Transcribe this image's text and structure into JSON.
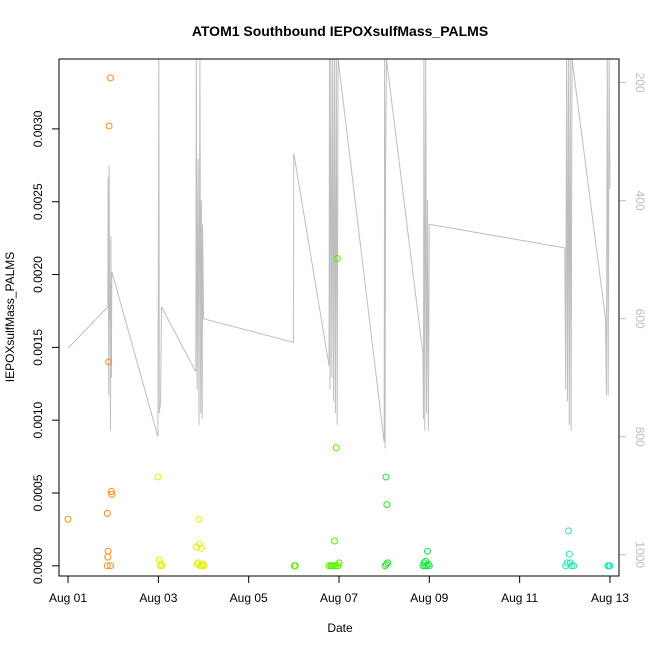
{
  "chart_data": {
    "type": "scatter",
    "title": "ATOM1 Southbound IEPOXsulfMass_PALMS",
    "xlabel": "Date",
    "ylabel": "IEPOXsulfMass_PALMS",
    "x_unit": "days in August",
    "xlim": [
      0.8,
      13.2
    ],
    "ylim": [
      -7e-05,
      0.00348
    ],
    "x_ticks": [
      {
        "value": 1,
        "label": "Aug 01"
      },
      {
        "value": 3,
        "label": "Aug 03"
      },
      {
        "value": 5,
        "label": "Aug 05"
      },
      {
        "value": 7,
        "label": "Aug 07"
      },
      {
        "value": 9,
        "label": "Aug 09"
      },
      {
        "value": 11,
        "label": "Aug 11"
      },
      {
        "value": 13,
        "label": "Aug 13"
      }
    ],
    "y_ticks": [
      {
        "value": 0,
        "label": "0.0000"
      },
      {
        "value": 0.0005,
        "label": "0.0005"
      },
      {
        "value": 0.001,
        "label": "0.0010"
      },
      {
        "value": 0.0015,
        "label": "0.0015"
      },
      {
        "value": 0.002,
        "label": "0.0020"
      },
      {
        "value": 0.0025,
        "label": "0.0025"
      },
      {
        "value": 0.003,
        "label": "0.0030"
      }
    ],
    "y2_reversed": true,
    "y2lim": [
      1036,
      160
    ],
    "y2_ticks": [
      {
        "value": 200,
        "label": "200"
      },
      {
        "value": 400,
        "label": "400"
      },
      {
        "value": 600,
        "label": "600"
      },
      {
        "value": 800,
        "label": "800"
      },
      {
        "value": 1000,
        "label": "1000"
      }
    ],
    "grid": false,
    "points": [
      {
        "x": 1.0,
        "y": 0.00032,
        "color": "#ff8c1a"
      },
      {
        "x": 1.87,
        "y": 0.00036,
        "color": "#ff8c1a"
      },
      {
        "x": 1.88,
        "y": 6e-05,
        "color": "#ff8c1a"
      },
      {
        "x": 1.89,
        "y": 0.0001,
        "color": "#ff8c1a"
      },
      {
        "x": 1.9,
        "y": 0.0014,
        "color": "#ff8c1a"
      },
      {
        "x": 1.91,
        "y": 0.00302,
        "color": "#ff8c1a"
      },
      {
        "x": 1.87,
        "y": 0.0,
        "color": "#ff8c1a"
      },
      {
        "x": 1.94,
        "y": 0.0,
        "color": "#ff8c1a"
      },
      {
        "x": 1.94,
        "y": 0.00335,
        "color": "#ff8c1a"
      },
      {
        "x": 1.96,
        "y": 0.00051,
        "color": "#ff8c1a"
      },
      {
        "x": 1.97,
        "y": 0.00049,
        "color": "#ff8c1a"
      },
      {
        "x": 2.99,
        "y": 0.00061,
        "color": "#e6f000"
      },
      {
        "x": 3.02,
        "y": 4e-05,
        "color": "#e6f000"
      },
      {
        "x": 3.04,
        "y": 0.0,
        "color": "#e6f000"
      },
      {
        "x": 3.06,
        "y": 1e-05,
        "color": "#e6f000"
      },
      {
        "x": 3.08,
        "y": 0.0,
        "color": "#e6f000"
      },
      {
        "x": 3.84,
        "y": 0.00013,
        "color": "#e6f000"
      },
      {
        "x": 3.86,
        "y": 1e-05,
        "color": "#e6f000"
      },
      {
        "x": 3.88,
        "y": 2e-05,
        "color": "#e6f000"
      },
      {
        "x": 3.9,
        "y": 0.00032,
        "color": "#e6f000"
      },
      {
        "x": 3.91,
        "y": 0.00015,
        "color": "#e6f000"
      },
      {
        "x": 3.93,
        "y": 0.0,
        "color": "#e6f000"
      },
      {
        "x": 3.95,
        "y": 0.00012,
        "color": "#e6f000"
      },
      {
        "x": 3.97,
        "y": 0.0,
        "color": "#e6f000"
      },
      {
        "x": 3.99,
        "y": 1e-05,
        "color": "#e6f000"
      },
      {
        "x": 4.01,
        "y": 0.0,
        "color": "#e6f000"
      },
      {
        "x": 6.01,
        "y": 0.0,
        "color": "#55ee00"
      },
      {
        "x": 6.03,
        "y": 0.0,
        "color": "#55ee00"
      },
      {
        "x": 6.78,
        "y": 0.0,
        "color": "#55ee00"
      },
      {
        "x": 6.82,
        "y": 0.0,
        "color": "#55ee00"
      },
      {
        "x": 6.85,
        "y": 0.0,
        "color": "#55ee00"
      },
      {
        "x": 6.88,
        "y": 0.0,
        "color": "#55ee00"
      },
      {
        "x": 6.9,
        "y": 0.00017,
        "color": "#55ee00"
      },
      {
        "x": 6.93,
        "y": 0.0,
        "color": "#55ee00"
      },
      {
        "x": 6.94,
        "y": 0.00081,
        "color": "#55ee00"
      },
      {
        "x": 6.96,
        "y": 0.00211,
        "color": "#55ee00"
      },
      {
        "x": 6.98,
        "y": 0.0,
        "color": "#55ee00"
      },
      {
        "x": 7.0,
        "y": 2e-05,
        "color": "#55ee00"
      },
      {
        "x": 8.02,
        "y": 0.0,
        "color": "#2be02b"
      },
      {
        "x": 8.04,
        "y": 0.00061,
        "color": "#2be02b"
      },
      {
        "x": 8.05,
        "y": 1e-05,
        "color": "#2be02b"
      },
      {
        "x": 8.06,
        "y": 0.00042,
        "color": "#2be02b"
      },
      {
        "x": 8.08,
        "y": 2e-05,
        "color": "#2be02b"
      },
      {
        "x": 8.86,
        "y": 0.0,
        "color": "#19e641"
      },
      {
        "x": 8.88,
        "y": 2e-05,
        "color": "#19e641"
      },
      {
        "x": 8.9,
        "y": 0.0,
        "color": "#19e641"
      },
      {
        "x": 8.92,
        "y": 3e-05,
        "color": "#19e641"
      },
      {
        "x": 8.94,
        "y": 0.0,
        "color": "#19e641"
      },
      {
        "x": 8.96,
        "y": 0.0001,
        "color": "#19e641"
      },
      {
        "x": 8.98,
        "y": 1e-05,
        "color": "#19e641"
      },
      {
        "x": 9.0,
        "y": 0.0,
        "color": "#19e641"
      },
      {
        "x": 12.02,
        "y": 0.0,
        "color": "#22e6b4"
      },
      {
        "x": 12.05,
        "y": 2e-05,
        "color": "#22e6b4"
      },
      {
        "x": 12.08,
        "y": 0.00024,
        "color": "#22e6b4"
      },
      {
        "x": 12.1,
        "y": 8e-05,
        "color": "#22e6b4"
      },
      {
        "x": 12.12,
        "y": 2e-05,
        "color": "#22e6b4"
      },
      {
        "x": 12.15,
        "y": 0.0,
        "color": "#22e6b4"
      },
      {
        "x": 12.2,
        "y": 0.0,
        "color": "#22e6b4"
      },
      {
        "x": 12.95,
        "y": 0.0,
        "color": "#22e6b4"
      },
      {
        "x": 12.98,
        "y": 0.0,
        "color": "#22e6b4"
      },
      {
        "x": 13.0,
        "y": 0.0,
        "color": "#22e6b4"
      }
    ],
    "altitude_series": {
      "color": "#bebebe",
      "axis": "right",
      "points": [
        [
          1.0,
          650
        ],
        [
          1.88,
          580
        ],
        [
          1.89,
          360
        ],
        [
          1.9,
          730
        ],
        [
          1.91,
          340
        ],
        [
          1.92,
          600
        ],
        [
          1.93,
          540
        ],
        [
          1.94,
          790
        ],
        [
          1.95,
          460
        ],
        [
          1.96,
          700
        ],
        [
          1.97,
          520
        ],
        [
          2.99,
          800
        ],
        [
          3.01,
          140
        ],
        [
          3.02,
          760
        ],
        [
          3.05,
          740
        ],
        [
          3.07,
          580
        ],
        [
          3.83,
          690
        ],
        [
          3.84,
          140
        ],
        [
          3.86,
          720
        ],
        [
          3.88,
          330
        ],
        [
          3.9,
          780
        ],
        [
          3.92,
          140
        ],
        [
          3.94,
          760
        ],
        [
          3.95,
          400
        ],
        [
          3.97,
          770
        ],
        [
          3.98,
          440
        ],
        [
          4.0,
          600
        ],
        [
          5.99,
          640
        ],
        [
          6.0,
          320
        ],
        [
          6.78,
          680
        ],
        [
          6.79,
          100
        ],
        [
          6.8,
          720
        ],
        [
          6.82,
          150
        ],
        [
          6.84,
          700
        ],
        [
          6.86,
          140
        ],
        [
          6.88,
          740
        ],
        [
          6.9,
          130
        ],
        [
          6.92,
          760
        ],
        [
          6.94,
          140
        ],
        [
          6.96,
          780
        ],
        [
          6.98,
          160
        ],
        [
          8.0,
          810
        ],
        [
          8.01,
          140
        ],
        [
          8.02,
          820
        ],
        [
          8.03,
          370
        ],
        [
          8.05,
          140
        ],
        [
          8.86,
          660
        ],
        [
          8.87,
          770
        ],
        [
          8.88,
          140
        ],
        [
          8.9,
          790
        ],
        [
          8.92,
          140
        ],
        [
          8.94,
          760
        ],
        [
          8.96,
          400
        ],
        [
          8.98,
          790
        ],
        [
          9.0,
          440
        ],
        [
          12.0,
          480
        ],
        [
          12.02,
          720
        ],
        [
          12.04,
          140
        ],
        [
          12.06,
          740
        ],
        [
          12.08,
          150
        ],
        [
          12.1,
          780
        ],
        [
          12.12,
          140
        ],
        [
          12.14,
          790
        ],
        [
          12.16,
          140
        ],
        [
          12.9,
          600
        ],
        [
          12.92,
          730
        ],
        [
          12.94,
          140
        ],
        [
          12.96,
          730
        ],
        [
          12.98,
          150
        ],
        [
          13.0,
          380
        ]
      ]
    }
  }
}
